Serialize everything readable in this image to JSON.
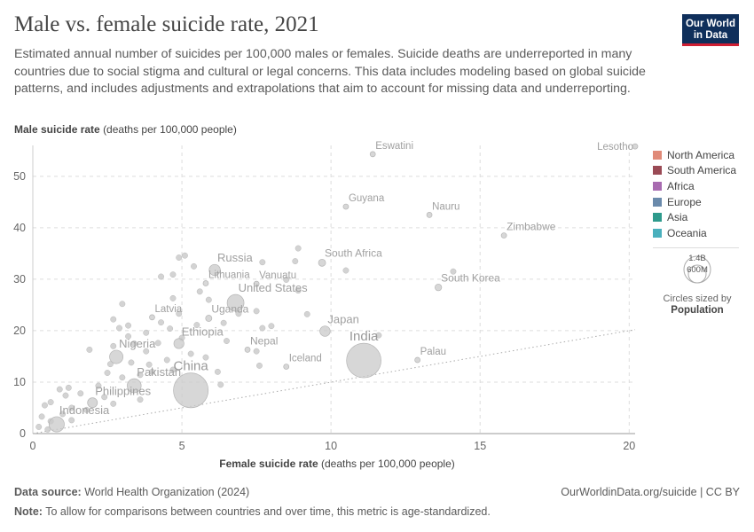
{
  "header": {
    "title": "Male vs. female suicide rate, 2021",
    "subtitle": "Estimated annual number of suicides per 100,000 males or females. Suicide deaths are underreported in many countries due to social stigma and cultural or legal concerns. This data includes modeling based on global suicide patterns, and includes adjustments and extrapolations that aim to account for missing data and underreporting.",
    "logo_line1": "Our World",
    "logo_line2": "in Data"
  },
  "axes": {
    "y_label_main": "Male suicide rate",
    "y_label_unit": "(deaths per 100,000 people)",
    "x_label_main": "Female suicide rate",
    "x_label_unit": "(deaths per 100,000 people)"
  },
  "legend": {
    "items": [
      {
        "label": "North America",
        "color": "#e08a78"
      },
      {
        "label": "South America",
        "color": "#9a4a55"
      },
      {
        "label": "Africa",
        "color": "#a86bb0"
      },
      {
        "label": "Europe",
        "color": "#6a8aab"
      },
      {
        "label": "Asia",
        "color": "#2e9a8c"
      },
      {
        "label": "Oceania",
        "color": "#4ab0bd"
      }
    ],
    "size_big": "1.4B",
    "size_small": "600M",
    "size_title": "Circles sized by",
    "size_variable": "Population"
  },
  "footer": {
    "source_label": "Data source:",
    "source_text": "World Health Organization (2024)",
    "right_text": "OurWorldinData.org/suicide | CC BY",
    "note_label": "Note:",
    "note_text": "To allow for comparisons between countries and over time, this metric is age-standardized."
  },
  "chart_data": {
    "type": "scatter",
    "xlim": [
      0,
      20.2
    ],
    "ylim": [
      0,
      56
    ],
    "x_ticks": [
      0,
      5,
      10,
      15,
      20
    ],
    "y_ticks": [
      0,
      10,
      20,
      30,
      40,
      50
    ],
    "grid": true,
    "reference_line": "x = y",
    "labeled_points": [
      {
        "name": "Eswatini",
        "x": 11.4,
        "y": 54.3,
        "pop_m": 1.2
      },
      {
        "name": "Lesotho",
        "x": 20.2,
        "y": 55.8,
        "pop_m": 2.3
      },
      {
        "name": "Guyana",
        "x": 10.5,
        "y": 44.1,
        "pop_m": 0.8
      },
      {
        "name": "Nauru",
        "x": 13.3,
        "y": 42.5,
        "pop_m": 0.1
      },
      {
        "name": "Zimbabwe",
        "x": 15.8,
        "y": 38.5,
        "pop_m": 16
      },
      {
        "name": "Russia",
        "x": 6.1,
        "y": 31.8,
        "pop_m": 145
      },
      {
        "name": "South Africa",
        "x": 9.7,
        "y": 33.2,
        "pop_m": 60
      },
      {
        "name": "Lithuania",
        "x": 5.8,
        "y": 29.2,
        "pop_m": 2.8
      },
      {
        "name": "Vanuatu",
        "x": 7.5,
        "y": 29.1,
        "pop_m": 0.3
      },
      {
        "name": "South Korea",
        "x": 13.6,
        "y": 28.4,
        "pop_m": 52
      },
      {
        "name": "United States",
        "x": 6.8,
        "y": 25.4,
        "pop_m": 333
      },
      {
        "name": "Latvia",
        "x": 4.0,
        "y": 22.6,
        "pop_m": 1.9
      },
      {
        "name": "Uganda",
        "x": 5.9,
        "y": 22.4,
        "pop_m": 46
      },
      {
        "name": "Japan",
        "x": 9.8,
        "y": 19.9,
        "pop_m": 125
      },
      {
        "name": "Ethiopia",
        "x": 4.9,
        "y": 17.5,
        "pop_m": 120
      },
      {
        "name": "India",
        "x": 11.1,
        "y": 14.2,
        "pop_m": 1400
      },
      {
        "name": "Nigeria",
        "x": 2.8,
        "y": 14.9,
        "pop_m": 213
      },
      {
        "name": "Nepal",
        "x": 7.2,
        "y": 16.3,
        "pop_m": 30
      },
      {
        "name": "Palau",
        "x": 12.9,
        "y": 14.3,
        "pop_m": 0.02
      },
      {
        "name": "Iceland",
        "x": 8.5,
        "y": 13.0,
        "pop_m": 0.37
      },
      {
        "name": "China",
        "x": 5.3,
        "y": 8.4,
        "pop_m": 1420
      },
      {
        "name": "Pakistan",
        "x": 3.4,
        "y": 9.3,
        "pop_m": 230
      },
      {
        "name": "Philippines",
        "x": 2.0,
        "y": 6.0,
        "pop_m": 114
      },
      {
        "name": "Indonesia",
        "x": 0.8,
        "y": 1.8,
        "pop_m": 274
      }
    ],
    "other_points": [
      [
        5.1,
        34.6
      ],
      [
        4.9,
        34.2
      ],
      [
        4.7,
        30.9
      ],
      [
        4.3,
        30.5
      ],
      [
        5.4,
        32.5
      ],
      [
        7.7,
        33.3
      ],
      [
        8.8,
        33.5
      ],
      [
        8.9,
        36.0
      ],
      [
        8.5,
        29.9
      ],
      [
        8.9,
        27.8
      ],
      [
        9.2,
        23.2
      ],
      [
        10.5,
        31.7
      ],
      [
        14.1,
        31.5
      ],
      [
        5.9,
        26.0
      ],
      [
        5.6,
        27.6
      ],
      [
        4.7,
        26.3
      ],
      [
        3.0,
        25.2
      ],
      [
        2.7,
        22.2
      ],
      [
        3.2,
        21.0
      ],
      [
        4.3,
        21.6
      ],
      [
        4.6,
        20.4
      ],
      [
        3.8,
        19.6
      ],
      [
        2.9,
        20.5
      ],
      [
        6.9,
        23.3
      ],
      [
        7.5,
        23.8
      ],
      [
        7.7,
        20.5
      ],
      [
        8.0,
        20.9
      ],
      [
        11.6,
        19.1
      ],
      [
        2.7,
        17.0
      ],
      [
        3.4,
        17.5
      ],
      [
        4.2,
        17.6
      ],
      [
        3.8,
        16.0
      ],
      [
        1.9,
        16.3
      ],
      [
        2.6,
        13.5
      ],
      [
        3.3,
        13.8
      ],
      [
        3.9,
        13.4
      ],
      [
        4.5,
        14.3
      ],
      [
        5.3,
        15.5
      ],
      [
        7.5,
        16.0
      ],
      [
        7.6,
        13.2
      ],
      [
        6.2,
        12.0
      ],
      [
        4.7,
        12.4
      ],
      [
        4.0,
        12.0
      ],
      [
        2.5,
        11.8
      ],
      [
        3.0,
        10.9
      ],
      [
        3.6,
        11.4
      ],
      [
        1.2,
        8.9
      ],
      [
        0.9,
        8.6
      ],
      [
        2.2,
        9.3
      ],
      [
        1.6,
        7.8
      ],
      [
        1.1,
        7.4
      ],
      [
        0.6,
        6.1
      ],
      [
        0.4,
        5.5
      ],
      [
        1.3,
        5.0
      ],
      [
        1.8,
        4.6
      ],
      [
        2.7,
        5.8
      ],
      [
        3.6,
        6.6
      ],
      [
        0.3,
        3.3
      ],
      [
        0.6,
        2.4
      ],
      [
        1.3,
        2.6
      ],
      [
        1.0,
        3.8
      ],
      [
        0.2,
        1.3
      ],
      [
        0.5,
        0.8
      ],
      [
        2.4,
        7.1
      ],
      [
        6.3,
        9.5
      ],
      [
        5.8,
        14.8
      ],
      [
        6.5,
        18.0
      ],
      [
        5.5,
        21.1
      ],
      [
        4.9,
        23.3
      ],
      [
        6.4,
        21.5
      ],
      [
        5.0,
        18.6
      ],
      [
        3.2,
        18.9
      ]
    ]
  }
}
